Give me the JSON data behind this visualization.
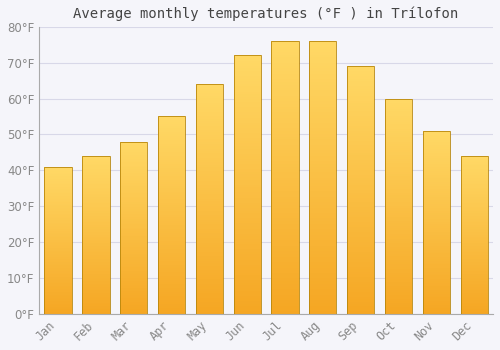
{
  "title": "Average monthly temperatures (°F ) in Trílofon",
  "months": [
    "Jan",
    "Feb",
    "Mar",
    "Apr",
    "May",
    "Jun",
    "Jul",
    "Aug",
    "Sep",
    "Oct",
    "Nov",
    "Dec"
  ],
  "values": [
    41,
    44,
    48,
    55,
    64,
    72,
    76,
    76,
    69,
    60,
    51,
    44
  ],
  "bar_color_bottom": "#F5A623",
  "bar_color_top": "#FFD966",
  "bar_edge_color": "#B8860B",
  "background_color": "#F5F5FA",
  "plot_bg_color": "#F5F5FA",
  "grid_color": "#D8D8E8",
  "text_color": "#888888",
  "title_color": "#444444",
  "ylim": [
    0,
    80
  ],
  "yticks": [
    0,
    10,
    20,
    30,
    40,
    50,
    60,
    70,
    80
  ],
  "title_fontsize": 10,
  "tick_fontsize": 8.5
}
